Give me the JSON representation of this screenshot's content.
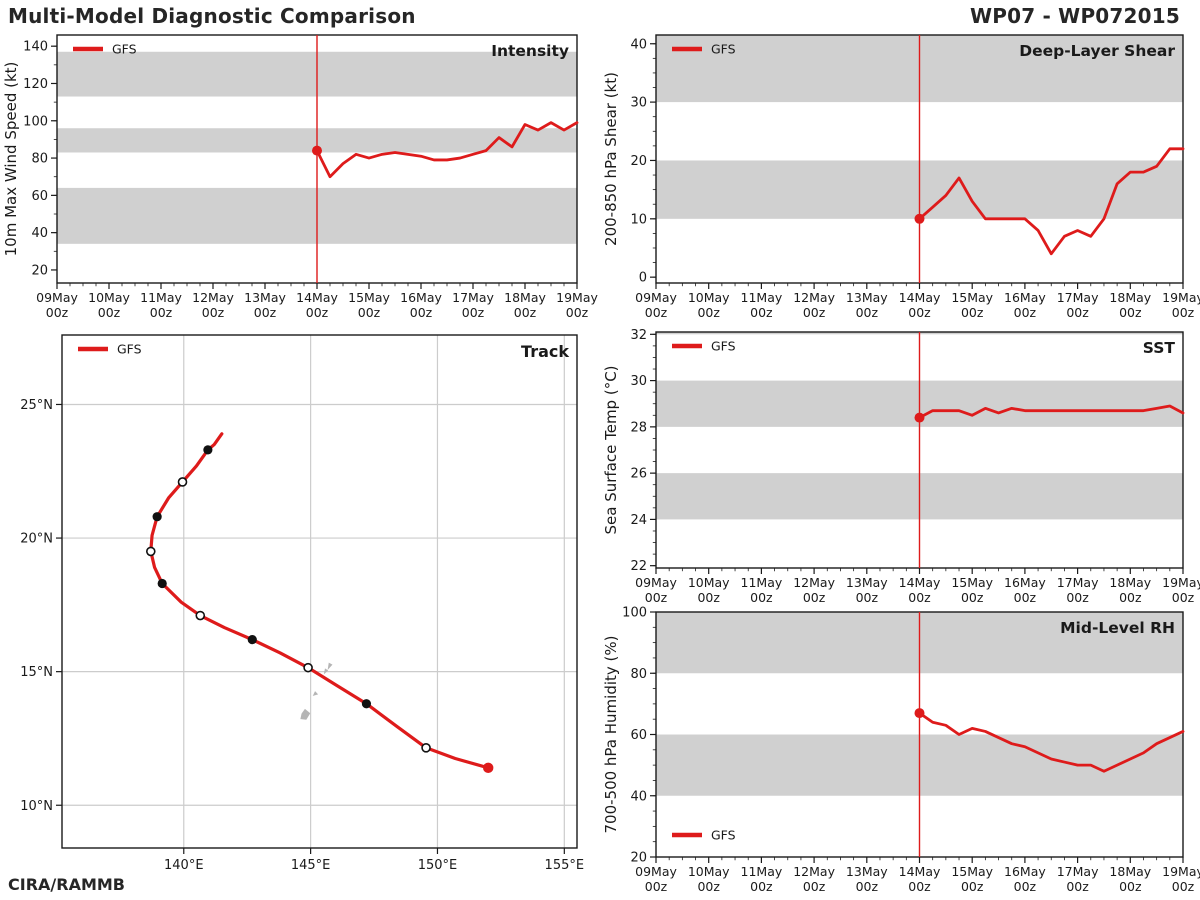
{
  "header": {
    "title": "Multi-Model Diagnostic Comparison",
    "storm_id": "WP07 - WP072015"
  },
  "footer": {
    "credit": "CIRA/RAMMB"
  },
  "legend_label": "GFS",
  "colors": {
    "accent": "#de1b1b",
    "band": "#d0d0d0",
    "frame": "#1a1a1a",
    "grid": "#cccccc",
    "island": "#b5b5b5",
    "marker_dark": "#111111"
  },
  "time_axis": {
    "range_hours": [
      -120,
      120
    ],
    "major_step_hours": 24,
    "minor_step_hours": 6,
    "tick_labels_top": [
      "09May",
      "10May",
      "11May",
      "12May",
      "13May",
      "14May",
      "15May",
      "16May",
      "17May",
      "18May",
      "19May"
    ],
    "tick_label_bottom": "00z",
    "forecast_init_hour": 0
  },
  "chart_data": [
    {
      "id": "intensity",
      "type": "line",
      "title": "Intensity",
      "ylabel": "10m Max Wind Speed (kt)",
      "ylim": [
        13,
        146
      ],
      "yticks": [
        20,
        40,
        60,
        80,
        100,
        120,
        140
      ],
      "ytick_minor_step": 10,
      "bands": [
        [
          34,
          64
        ],
        [
          83,
          96
        ],
        [
          113,
          137
        ]
      ],
      "legend_pos": "top-left",
      "series": [
        {
          "name": "GFS",
          "x_start_hour": 0,
          "x_step_hours": 6,
          "values": [
            84,
            70,
            77,
            82,
            80,
            82,
            83,
            82,
            81,
            79,
            79,
            80,
            82,
            84,
            91,
            86,
            98,
            95,
            99,
            95,
            99
          ]
        }
      ]
    },
    {
      "id": "shear",
      "type": "line",
      "title": "Deep-Layer Shear",
      "ylabel": "200-850 hPa Shear (kt)",
      "ylim": [
        -1,
        41.5
      ],
      "yticks": [
        0,
        10,
        20,
        30,
        40
      ],
      "ytick_minor_step": 2.5,
      "bands": [
        [
          10,
          20
        ],
        [
          30,
          41.5
        ]
      ],
      "legend_pos": "top-left",
      "series": [
        {
          "name": "GFS",
          "x_start_hour": 0,
          "x_step_hours": 6,
          "values": [
            10,
            12,
            14,
            17,
            13,
            10,
            10,
            10,
            10,
            8,
            4,
            7,
            8,
            7,
            10,
            16,
            18,
            18,
            19,
            22,
            22
          ]
        }
      ]
    },
    {
      "id": "track",
      "type": "track",
      "title": "Track",
      "lon_range": [
        135.2,
        155.5
      ],
      "lat_range": [
        8.4,
        27.6
      ],
      "lon_ticks": [
        140,
        145,
        150,
        155
      ],
      "lat_ticks": [
        10,
        15,
        20,
        25
      ],
      "lon_tick_labels": [
        "140°E",
        "145°E",
        "150°E",
        "155°E"
      ],
      "lat_tick_labels": [
        "10°N",
        "15°N",
        "20°N",
        "25°N"
      ],
      "legend_pos": "top-left",
      "path": [
        [
          152.0,
          11.4
        ],
        [
          150.7,
          11.75
        ],
        [
          149.55,
          12.15
        ],
        [
          148.4,
          12.95
        ],
        [
          147.2,
          13.8
        ],
        [
          146.0,
          14.5
        ],
        [
          144.9,
          15.15
        ],
        [
          143.8,
          15.7
        ],
        [
          142.7,
          16.2
        ],
        [
          141.6,
          16.65
        ],
        [
          140.65,
          17.1
        ],
        [
          139.9,
          17.6
        ],
        [
          139.15,
          18.3
        ],
        [
          138.85,
          18.9
        ],
        [
          138.7,
          19.5
        ],
        [
          138.75,
          20.1
        ],
        [
          138.95,
          20.8
        ],
        [
          139.4,
          21.5
        ],
        [
          139.95,
          22.1
        ],
        [
          140.5,
          22.7
        ],
        [
          140.95,
          23.3
        ],
        [
          141.2,
          23.5
        ],
        [
          141.5,
          23.9
        ]
      ],
      "markers": [
        {
          "i": 0,
          "style": "start"
        },
        {
          "i": 2,
          "style": "open"
        },
        {
          "i": 4,
          "style": "filled"
        },
        {
          "i": 6,
          "style": "open"
        },
        {
          "i": 8,
          "style": "filled"
        },
        {
          "i": 10,
          "style": "open"
        },
        {
          "i": 12,
          "style": "filled"
        },
        {
          "i": 14,
          "style": "open"
        },
        {
          "i": 16,
          "style": "filled"
        },
        {
          "i": 18,
          "style": "open"
        },
        {
          "i": 20,
          "style": "filled"
        }
      ],
      "islands": [
        [
          [
            144.62,
            13.24
          ],
          [
            144.82,
            13.22
          ],
          [
            144.96,
            13.44
          ],
          [
            144.78,
            13.58
          ],
          [
            144.66,
            13.42
          ]
        ],
        [
          [
            145.12,
            14.12
          ],
          [
            145.26,
            14.16
          ],
          [
            145.18,
            14.24
          ]
        ],
        [
          [
            145.55,
            14.95
          ],
          [
            145.66,
            15.04
          ],
          [
            145.58,
            15.09
          ]
        ],
        [
          [
            145.7,
            15.12
          ],
          [
            145.83,
            15.26
          ],
          [
            145.73,
            15.31
          ]
        ]
      ]
    },
    {
      "id": "sst",
      "type": "line",
      "title": "SST",
      "ylabel": "Sea Surface Temp (°C)",
      "ylim": [
        21.9,
        32.1
      ],
      "yticks": [
        22,
        24,
        26,
        28,
        30,
        32
      ],
      "ytick_minor_step": 0.5,
      "bands": [
        [
          24,
          26
        ],
        [
          28,
          30
        ],
        [
          32,
          32.1
        ]
      ],
      "legend_pos": "top-left",
      "series": [
        {
          "name": "GFS",
          "x_start_hour": 0,
          "x_step_hours": 6,
          "values": [
            28.4,
            28.7,
            28.7,
            28.7,
            28.5,
            28.8,
            28.6,
            28.8,
            28.7,
            28.7,
            28.7,
            28.7,
            28.7,
            28.7,
            28.7,
            28.7,
            28.7,
            28.7,
            28.8,
            28.9,
            28.6
          ]
        }
      ]
    },
    {
      "id": "rh",
      "type": "line",
      "title": "Mid-Level RH",
      "ylabel": "700-500 hPa Humidity (%)",
      "ylim": [
        20,
        100
      ],
      "yticks": [
        20,
        40,
        60,
        80,
        100
      ],
      "ytick_minor_step": 5,
      "bands": [
        [
          40,
          60
        ],
        [
          80,
          100
        ]
      ],
      "legend_pos": "bottom-left",
      "series": [
        {
          "name": "GFS",
          "x_start_hour": 0,
          "x_step_hours": 6,
          "values": [
            67,
            64,
            63,
            60,
            62,
            61,
            59,
            57,
            56,
            54,
            52,
            51,
            50,
            50,
            48,
            50,
            52,
            54,
            57,
            59,
            61
          ]
        }
      ]
    }
  ]
}
